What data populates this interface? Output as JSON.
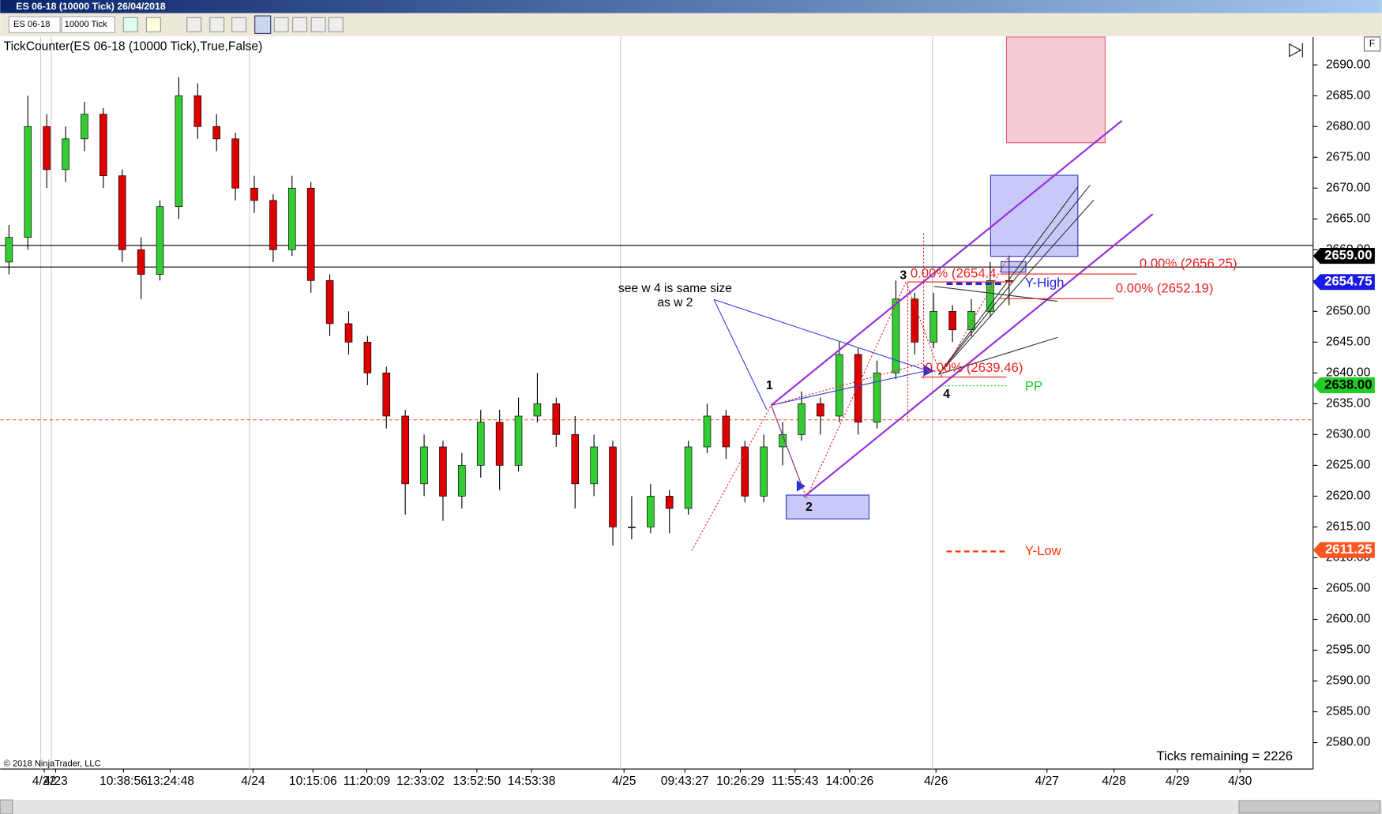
{
  "window": {
    "title": "ES 06-18 (10000 Tick)  26/04/2018",
    "instrument": "ES 06-18",
    "period": "10000 Tick",
    "f_button": "F"
  },
  "chart_data": {
    "type": "candlestick",
    "indicator_label": "TickCounter(ES 06-18 (10000 Tick),True,False)",
    "copyright": "© 2018 NinjaTrader, LLC",
    "ticks_remaining": "Ticks remaining = 2226",
    "ylim": [
      2575.7,
      2694.1
    ],
    "yticks": [
      {
        "value": 2580,
        "label": "2580.00"
      },
      {
        "value": 2585,
        "label": "2585.00"
      },
      {
        "value": 2590,
        "label": "2590.00"
      },
      {
        "value": 2595,
        "label": "2595.00"
      },
      {
        "value": 2600,
        "label": "2600.00"
      },
      {
        "value": 2605,
        "label": "2605.00"
      },
      {
        "value": 2610,
        "label": "2610.00"
      },
      {
        "value": 2615,
        "label": "2615.00"
      },
      {
        "value": 2620,
        "label": "2620.00"
      },
      {
        "value": 2625,
        "label": "2625.00"
      },
      {
        "value": 2630,
        "label": "2630.00"
      },
      {
        "value": 2635,
        "label": "2635.00"
      },
      {
        "value": 2640,
        "label": "2640.00"
      },
      {
        "value": 2645,
        "label": "2645.00"
      },
      {
        "value": 2650,
        "label": "2650.00"
      },
      {
        "value": 2655,
        "label": "2655.00"
      },
      {
        "value": 2660,
        "label": "2660.00"
      },
      {
        "value": 2665,
        "label": "2665.00"
      },
      {
        "value": 2670,
        "label": "2670.00"
      },
      {
        "value": 2675,
        "label": "2675.00"
      },
      {
        "value": 2680,
        "label": "2680.00"
      },
      {
        "value": 2685,
        "label": "2685.00"
      },
      {
        "value": 2690,
        "label": "2690.00"
      }
    ],
    "x_labels": [
      "4/22",
      "4/23",
      "10:38:56",
      "13:24:48",
      "4/24",
      "10:15:06",
      "11:20:09",
      "12:33:02",
      "13:52:50",
      "14:53:38",
      "4/25",
      "09:43:27",
      "10:26:29",
      "11:55:43",
      "14:00:26",
      "4/26",
      "4/27",
      "4/28",
      "4/29",
      "4/30"
    ],
    "up_color": "#33cc33",
    "down_color": "#dd0000",
    "open": [
      2658,
      2662,
      2680,
      2673,
      2678,
      2682,
      2672,
      2660,
      2656,
      2667,
      2685,
      2680,
      2678,
      2670,
      2668,
      2660,
      2670,
      2655,
      2648,
      2645,
      2640,
      2633,
      2622,
      2628,
      2620,
      2625,
      2632,
      2625,
      2633,
      2635,
      2630,
      2622,
      2628,
      2615,
      2615,
      2620,
      2618,
      2628,
      2633,
      2628,
      2620,
      2628,
      2630,
      2635,
      2633,
      2643,
      2632,
      2640,
      2652,
      2645,
      2650,
      2647,
      2650,
      2655
    ],
    "high": [
      2664,
      2685,
      2682,
      2680,
      2684,
      2683,
      2673,
      2662,
      2668,
      2688,
      2687,
      2682,
      2679,
      2672,
      2669,
      2672,
      2671,
      2656,
      2650,
      2646,
      2641,
      2634,
      2630,
      2629,
      2627,
      2634,
      2634,
      2636,
      2640,
      2636,
      2633,
      2630,
      2629,
      2620,
      2622,
      2621,
      2629,
      2635,
      2634,
      2629,
      2630,
      2632,
      2637,
      2636,
      2645,
      2644,
      2642,
      2655,
      2653,
      2653,
      2651,
      2652,
      2658,
      2659
    ],
    "low": [
      2656,
      2660,
      2670,
      2671,
      2676,
      2670,
      2658,
      2652,
      2655,
      2665,
      2678,
      2676,
      2668,
      2666,
      2658,
      2659,
      2653,
      2646,
      2643,
      2638,
      2631,
      2617,
      2620,
      2616,
      2618,
      2623,
      2621,
      2624,
      2632,
      2628,
      2618,
      2620,
      2612,
      2613,
      2614,
      2614,
      2617,
      2627,
      2626,
      2619,
      2619,
      2625,
      2629,
      2630,
      2632,
      2630,
      2631,
      2639,
      2643,
      2644,
      2645,
      2646,
      2649,
      2651
    ],
    "close": [
      2662,
      2680,
      2673,
      2678,
      2682,
      2672,
      2660,
      2656,
      2667,
      2685,
      2680,
      2678,
      2670,
      2668,
      2660,
      2670,
      2655,
      2648,
      2645,
      2640,
      2633,
      2622,
      2628,
      2620,
      2625,
      2632,
      2625,
      2633,
      2635,
      2630,
      2622,
      2628,
      2615,
      2615,
      2620,
      2618,
      2628,
      2633,
      2628,
      2620,
      2628,
      2630,
      2635,
      2633,
      2643,
      2632,
      2640,
      2652,
      2645,
      2650,
      2647,
      2650,
      2655,
      2654.75
    ],
    "hlines": [
      {
        "value": 2660.7,
        "color": "#000000"
      },
      {
        "value": 2657.2,
        "color": "#000000"
      },
      {
        "value": 2632.4,
        "color": "#ff6633"
      }
    ],
    "price_tags": [
      {
        "value": 2659,
        "label": "2659.00",
        "color": "#000000",
        "text_color": "#ffffff"
      },
      {
        "value": 2654.75,
        "label": "2654.75",
        "color": "#1a1ae6",
        "text_color": "#ffffff"
      },
      {
        "value": 2638,
        "label": "2638.00",
        "color": "#22cc22",
        "text_color": "#000000"
      },
      {
        "value": 2611.25,
        "label": "2611.25",
        "color": "#ff5522",
        "text_color": "#ffffff"
      }
    ],
    "annotations": {
      "note_line1": "see w 4 is same size",
      "note_line2": "as w 2",
      "w1": "1",
      "w2": "2",
      "w3": "3",
      "w4": "4",
      "fib_a": "0.00% (2656.25)",
      "fib_b": "0.00% (2652.19)",
      "fib_c": "0.00% (2639.46)",
      "fib_d": "0.00% (2654.4",
      "y_high": "Y-High",
      "y_low": "Y-Low",
      "pp": "PP"
    }
  }
}
